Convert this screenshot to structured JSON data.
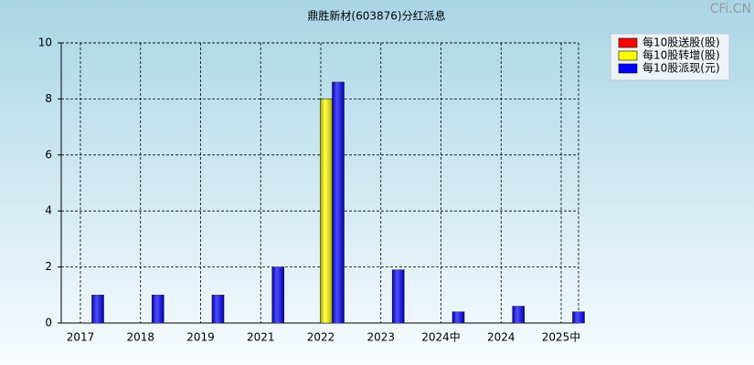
{
  "chart_data": {
    "type": "bar",
    "title": "鼎胜新材(603876)分红派息",
    "watermark": "CFi.CN",
    "categories": [
      "2017",
      "2018",
      "2019",
      "2021",
      "2022",
      "2023",
      "2024中",
      "2024",
      "2025中"
    ],
    "series": [
      {
        "name": "每10股送股(股)",
        "color": "#ff0000",
        "values": [
          0,
          0,
          0,
          0,
          0,
          0,
          0,
          0,
          0
        ]
      },
      {
        "name": "每10股转增(股)",
        "color": "#ffff00",
        "values": [
          0,
          0,
          0,
          0,
          8,
          0,
          0,
          0,
          0
        ]
      },
      {
        "name": "每10股派现(元)",
        "color": "#0000ff",
        "values": [
          1,
          1,
          1,
          2,
          8.6,
          1.9,
          0.4,
          0.6,
          0.4
        ]
      }
    ],
    "ylim": [
      0,
      10
    ],
    "yticks": [
      0,
      2,
      4,
      6,
      8,
      10
    ],
    "grid": true,
    "legend": "upper-right"
  }
}
